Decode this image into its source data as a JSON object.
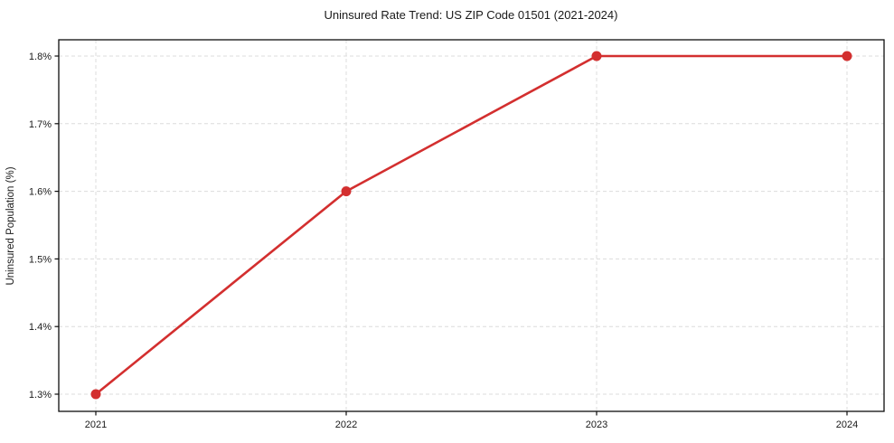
{
  "chart_data": {
    "type": "line",
    "title": "Uninsured Rate Trend: US ZIP Code 01501 (2021-2024)",
    "xlabel": "",
    "ylabel": "Uninsured Population (%)",
    "categories": [
      "2021",
      "2022",
      "2023",
      "2024"
    ],
    "values": [
      1.3,
      1.6,
      1.8,
      1.8
    ],
    "ylim": [
      1.3,
      1.8
    ],
    "yticks": [
      {
        "value": 1.3,
        "label": "1.3%"
      },
      {
        "value": 1.4,
        "label": "1.4%"
      },
      {
        "value": 1.5,
        "label": "1.5%"
      },
      {
        "value": 1.6,
        "label": "1.6%"
      },
      {
        "value": 1.7,
        "label": "1.7%"
      },
      {
        "value": 1.8,
        "label": "1.8%"
      }
    ],
    "grid": true,
    "grid_style": "dashed",
    "legend_position": "none",
    "colors": {
      "line": "#d32f2f",
      "marker": "#d32f2f",
      "grid": "#dcdcdc",
      "spine": "#0d0d0d",
      "text": "#1a1a1a"
    }
  }
}
